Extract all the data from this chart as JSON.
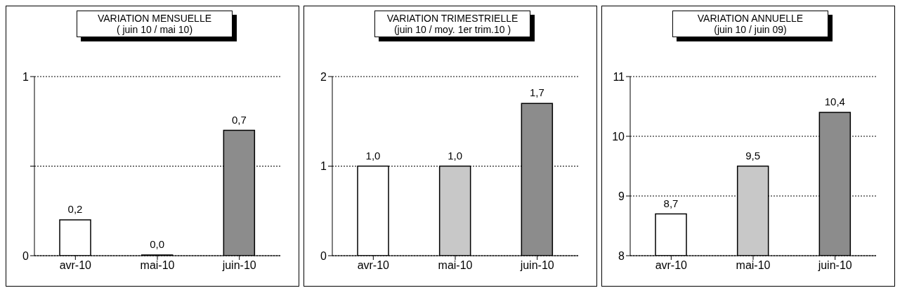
{
  "chart_data": [
    {
      "type": "bar",
      "title": "VARIATION MENSUELLE",
      "subtitle": "( juin 10 / mai 10)",
      "categories": [
        "avr-10",
        "mai-10",
        "juin-10"
      ],
      "values": [
        0.2,
        0.0,
        0.7
      ],
      "colors": [
        "#ffffff",
        "#c8c8c8",
        "#8c8c8c"
      ],
      "value_labels": [
        "0,2",
        "0,0",
        "0,7"
      ],
      "ylim": [
        0,
        1
      ],
      "yticks": [
        0,
        {
          "value": 0.5,
          "label": null
        },
        1
      ],
      "grid": "y"
    },
    {
      "type": "bar",
      "title": "VARIATION TRIMESTRIELLE",
      "subtitle": "(juin 10 / moy. 1er trim.10 )",
      "categories": [
        "avr-10",
        "mai-10",
        "juin-10"
      ],
      "values": [
        1.0,
        1.0,
        1.7
      ],
      "colors": [
        "#ffffff",
        "#c8c8c8",
        "#8c8c8c"
      ],
      "value_labels": [
        "1,0",
        "1,0",
        "1,7"
      ],
      "ylim": [
        0,
        2
      ],
      "yticks": [
        0,
        1,
        2
      ],
      "grid": "y"
    },
    {
      "type": "bar",
      "title": "VARIATION ANNUELLE",
      "subtitle": "(juin 10 / juin 09)",
      "categories": [
        "avr-10",
        "mai-10",
        "juin-10"
      ],
      "values": [
        8.7,
        9.5,
        10.4
      ],
      "colors": [
        "#ffffff",
        "#c8c8c8",
        "#8c8c8c"
      ],
      "value_labels": [
        "8,7",
        "9,5",
        "10,4"
      ],
      "ylim": [
        8,
        11
      ],
      "yticks": [
        8,
        9,
        10,
        11
      ],
      "grid": "y"
    }
  ]
}
